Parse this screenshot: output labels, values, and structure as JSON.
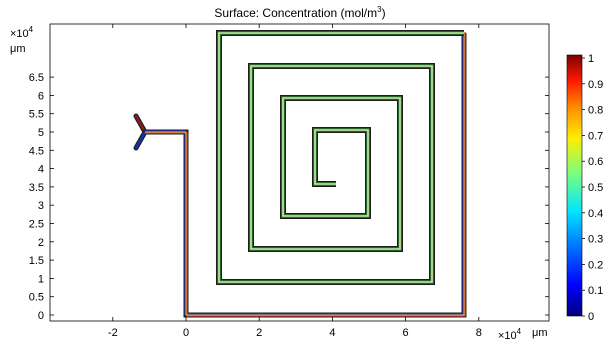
{
  "title_main": "Surface: Concentration (mol/m",
  "title_sup": "3",
  "title_close": ")",
  "axes": {
    "y_exp_base": "×10",
    "y_exp_power": "4",
    "y_unit": "μm",
    "x_exp_base": "×10",
    "x_exp_power": "4",
    "x_unit": "μm"
  },
  "colorbar": {
    "labels": [
      "1",
      "0.9",
      "0.8",
      "0.7",
      "0.6",
      "0.5",
      "0.4",
      "0.3",
      "0.2",
      "0.1",
      "0"
    ]
  },
  "colors": {
    "channel_high": "#e8bf55",
    "spiral_fill": "#c8e6b0",
    "spiral_edge": "#2f6b2f",
    "inlet_top": "#8b1a1a",
    "inlet_bottom": "#1a2fa8",
    "colormap": [
      "#000080",
      "#0000ff",
      "#0080ff",
      "#00ffff",
      "#80ff80",
      "#ffff00",
      "#ff8000",
      "#ff0000",
      "#800000"
    ]
  },
  "chart_data": {
    "type": "heatmap",
    "title": "Surface: Concentration (mol/m3)",
    "xlabel": "μm (×10^4)",
    "ylabel": "μm (×10^4)",
    "x_ticks": [
      -2,
      0,
      2,
      4,
      6,
      8
    ],
    "y_ticks": [
      0,
      0.5,
      1,
      1.5,
      2,
      2.5,
      3,
      3.5,
      4,
      4.5,
      5,
      5.5,
      6,
      6.5
    ],
    "xlim": [
      -3.7,
      9.8
    ],
    "ylim": [
      -0.2,
      7.7
    ],
    "colorbar_range": [
      0,
      1
    ],
    "grid": false
  }
}
